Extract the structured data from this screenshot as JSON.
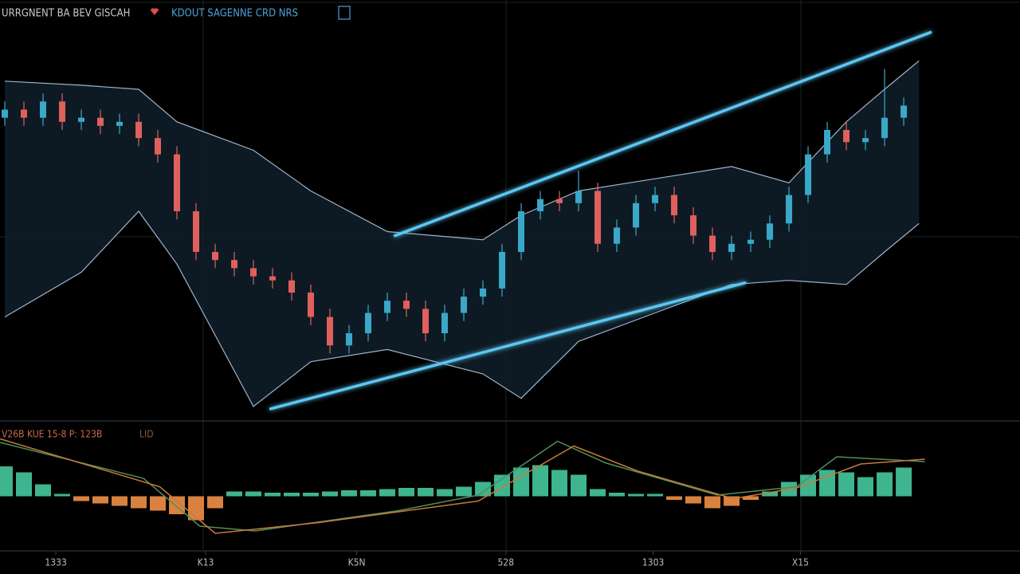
{
  "chart_data": [
    {
      "type": "candlestick",
      "title": "URRGNENT BA BEV GISCAH",
      "subtitle": "KDOUT SAGENNE CRD NRS",
      "xlim": [
        -0.25,
        53.08
      ],
      "ylim": [
        0,
        100
      ],
      "up_color": "#3aa8c8",
      "down_color": "#e0605e",
      "open": [
        73,
        75,
        73,
        77,
        72,
        73,
        71,
        72,
        68,
        64,
        50,
        40,
        38,
        36,
        34,
        33,
        30,
        24,
        17,
        20,
        25,
        28,
        26,
        20,
        25,
        29,
        31,
        40,
        50,
        53,
        52,
        55,
        42,
        46,
        52,
        54,
        49,
        44,
        40,
        42,
        43,
        47,
        54,
        64,
        70,
        67,
        68,
        73
      ],
      "high": [
        77,
        77,
        79,
        79,
        75,
        75,
        74,
        74,
        70,
        66,
        52,
        42,
        40,
        38,
        36,
        35,
        32,
        26,
        22,
        27,
        30,
        30,
        28,
        27,
        31,
        33,
        42,
        52,
        55,
        55,
        60,
        57,
        48,
        54,
        56,
        56,
        51,
        46,
        44,
        45,
        49,
        56,
        66,
        72,
        72,
        70,
        85,
        78
      ],
      "low": [
        71,
        71,
        71,
        70,
        70,
        69,
        69,
        66,
        62,
        48,
        38,
        36,
        34,
        32,
        31,
        28,
        22,
        15,
        15,
        18,
        23,
        24,
        18,
        18,
        23,
        27,
        29,
        38,
        48,
        50,
        50,
        40,
        40,
        44,
        50,
        47,
        42,
        38,
        38,
        40,
        41,
        45,
        52,
        62,
        65,
        65,
        66,
        71
      ],
      "close": [
        75,
        73,
        77,
        72,
        73,
        71,
        72,
        68,
        64,
        50,
        40,
        38,
        36,
        34,
        33,
        30,
        24,
        17,
        20,
        25,
        28,
        26,
        20,
        25,
        29,
        31,
        40,
        50,
        53,
        52,
        55,
        42,
        46,
        52,
        54,
        49,
        44,
        40,
        42,
        43,
        47,
        54,
        64,
        70,
        67,
        68,
        73,
        76
      ],
      "bands": {
        "color": "#9fb3c8",
        "fill": "#0f1e2a",
        "x": [
          0,
          4,
          7,
          9,
          13,
          16,
          20,
          25,
          27,
          30,
          34,
          38,
          41,
          44,
          46,
          47.8
        ],
        "upper": [
          82,
          81,
          80,
          72,
          65,
          55,
          45,
          43,
          49,
          55,
          58,
          61,
          57,
          72,
          80,
          87
        ],
        "lower": [
          24,
          35,
          50,
          37,
          2,
          13,
          16,
          10,
          4,
          18,
          25,
          32,
          33,
          32,
          40,
          47
        ]
      },
      "trendlines": [
        {
          "color": "#5cc6f2",
          "x": [
            20.4,
            48.4
          ],
          "values": [
            44,
            94
          ]
        },
        {
          "color": "#5cc6f2",
          "x": [
            13.9,
            38.7
          ],
          "values": [
            1.4,
            32.4
          ]
        }
      ]
    },
    {
      "type": "macd",
      "title": "V26B KUE 15-8 P: 123B",
      "subtitle": "LID",
      "xlim": [
        -0.25,
        53.08
      ],
      "ylim": [
        -45,
        55
      ],
      "xticks": [
        {
          "value": 2.67,
          "label": "1333"
        },
        {
          "value": 10.5,
          "label": "K13"
        },
        {
          "value": 18.4,
          "label": "K5N"
        },
        {
          "value": 26.2,
          "label": "528"
        },
        {
          "value": 33.9,
          "label": "1303"
        },
        {
          "value": 41.6,
          "label": "X15"
        }
      ],
      "histogram": {
        "positive_color": "#3fb58f",
        "negative_color": "#d9823f",
        "values": [
          25,
          20,
          10,
          2,
          -4,
          -6,
          -8,
          -10,
          -12,
          -15,
          -20,
          -10,
          4,
          4,
          3,
          3,
          3,
          4,
          5,
          5,
          6,
          7,
          7,
          6,
          8,
          12,
          18,
          24,
          26,
          22,
          18,
          6,
          3,
          2,
          2,
          -3,
          -6,
          -10,
          -8,
          -3,
          4,
          12,
          18,
          22,
          20,
          16,
          20,
          24
        ]
      },
      "lines": [
        {
          "color": "#4f8f5a",
          "x": [
            -0.25,
            7.25,
            10.2,
            13.1,
            20.6,
            24.75,
            28.9,
            31.4,
            37.25,
            41.4,
            43.5,
            48.1
          ],
          "values": [
            45,
            15,
            -25,
            -29,
            -12,
            1,
            46,
            28,
            1,
            8,
            33,
            29
          ]
        },
        {
          "color": "#c9793a",
          "x": [
            -0.25,
            8.1,
            11,
            16.4,
            24.75,
            29.75,
            33.1,
            38.1,
            41.4,
            44.75,
            48.1
          ],
          "values": [
            48,
            8,
            -31,
            -22,
            -4,
            42,
            21,
            -2,
            7,
            27,
            31
          ]
        }
      ]
    }
  ]
}
